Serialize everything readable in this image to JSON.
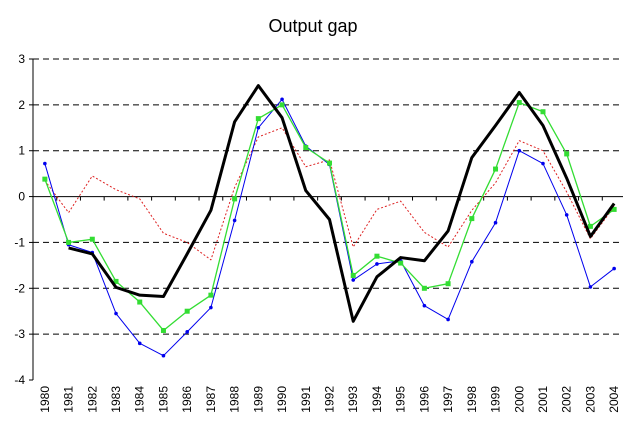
{
  "chart_data": {
    "type": "line",
    "title": "Output gap",
    "categories": [
      "1980",
      "1981",
      "1982",
      "1983",
      "1984",
      "1985",
      "1986",
      "1987",
      "1988",
      "1989",
      "1990",
      "1991",
      "1992",
      "1993",
      "1994",
      "1995",
      "1996",
      "1997",
      "1998",
      "1999",
      "2000",
      "2001",
      "2002",
      "2003",
      "2004"
    ],
    "series": [
      {
        "color": "#000000",
        "width": 3,
        "marker": "none",
        "style": "solid",
        "values": [
          null,
          -1.12,
          -1.25,
          -1.98,
          -2.15,
          -2.18,
          -1.25,
          -0.3,
          1.63,
          2.42,
          1.72,
          0.13,
          -0.5,
          -2.72,
          -1.75,
          -1.33,
          -1.4,
          -0.75,
          0.85,
          1.55,
          2.27,
          1.55,
          0.4,
          -0.87,
          -0.15
        ]
      },
      {
        "color": "#33dd33",
        "width": 1.3,
        "marker": "square",
        "style": "solid",
        "values": [
          0.38,
          -1.0,
          -0.93,
          -1.85,
          -2.3,
          -2.92,
          -2.5,
          -2.15,
          -0.05,
          1.7,
          2.0,
          1.07,
          0.73,
          -1.72,
          -1.3,
          -1.45,
          -2.0,
          -1.9,
          -0.48,
          0.6,
          2.05,
          1.85,
          0.93,
          -0.65,
          -0.28
        ]
      },
      {
        "color": "#0000ee",
        "width": 1,
        "marker": "dot",
        "style": "solid",
        "values": [
          0.72,
          -1.05,
          -1.22,
          -2.55,
          -3.2,
          -3.47,
          -2.95,
          -2.42,
          -0.52,
          1.5,
          2.12,
          1.1,
          0.7,
          -1.82,
          -1.47,
          -1.4,
          -2.38,
          -2.68,
          -1.42,
          -0.57,
          1.0,
          0.72,
          -0.4,
          -1.97,
          -1.57
        ]
      },
      {
        "color": "#dd2222",
        "width": 1,
        "marker": "none",
        "style": "dotted",
        "values": [
          0.35,
          -0.35,
          0.45,
          0.15,
          -0.05,
          -0.8,
          -1.0,
          -1.38,
          0.2,
          1.3,
          1.5,
          0.65,
          0.8,
          -1.1,
          -0.28,
          -0.1,
          -0.78,
          -1.1,
          -0.3,
          0.3,
          1.22,
          1.0,
          0.1,
          -0.92,
          -0.22
        ]
      }
    ],
    "ylim": [
      -4,
      3
    ],
    "yticks": [
      -4,
      -3,
      -2,
      -1,
      0,
      1,
      2,
      3
    ],
    "grid": true
  }
}
